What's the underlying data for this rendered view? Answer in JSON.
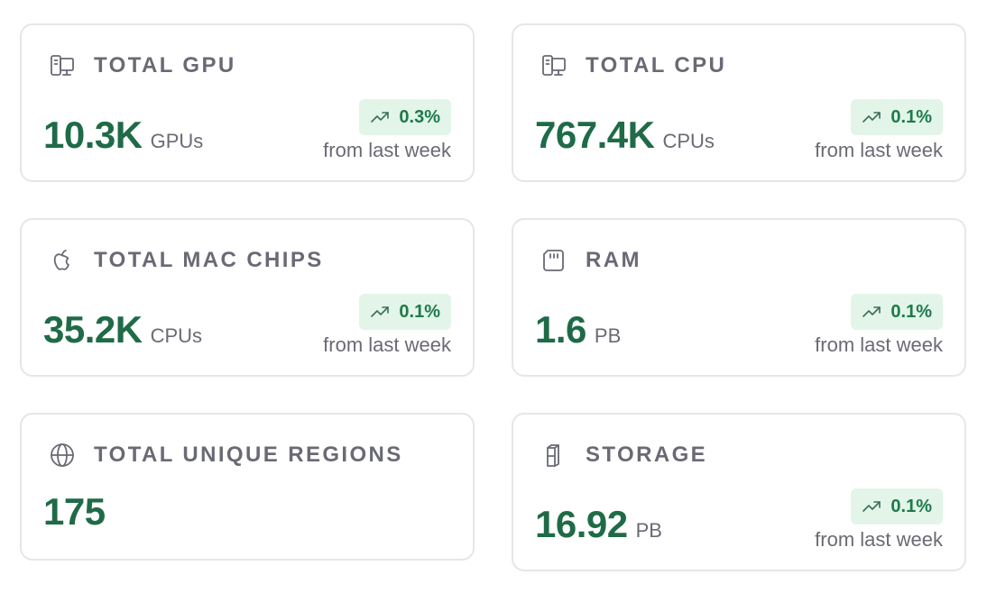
{
  "cards": [
    {
      "title": "TOTAL GPU",
      "icon": "computer-icon",
      "value": "10.3K",
      "unit": "GPUs",
      "change": "0.3%",
      "change_note": "from last week"
    },
    {
      "title": "TOTAL CPU",
      "icon": "computer-icon",
      "value": "767.4K",
      "unit": "CPUs",
      "change": "0.1%",
      "change_note": "from last week"
    },
    {
      "title": "TOTAL MAC CHIPS",
      "icon": "apple-icon",
      "value": "35.2K",
      "unit": "CPUs",
      "change": "0.1%",
      "change_note": "from last week"
    },
    {
      "title": "RAM",
      "icon": "memory-card-icon",
      "value": "1.6",
      "unit": "PB",
      "change": "0.1%",
      "change_note": "from last week"
    },
    {
      "title": "TOTAL UNIQUE REGIONS",
      "icon": "globe-icon",
      "value": "175"
    },
    {
      "title": "STORAGE",
      "icon": "storage-icon",
      "value": "16.92",
      "unit": "PB",
      "change": "0.1%",
      "change_note": "from last week"
    }
  ],
  "colors": {
    "value_green": "#1f6b47",
    "badge_bg": "#e2f5e8",
    "badge_text": "#1f7a4c",
    "label_gray": "#6a6a76",
    "border": "#e6e6ea"
  }
}
